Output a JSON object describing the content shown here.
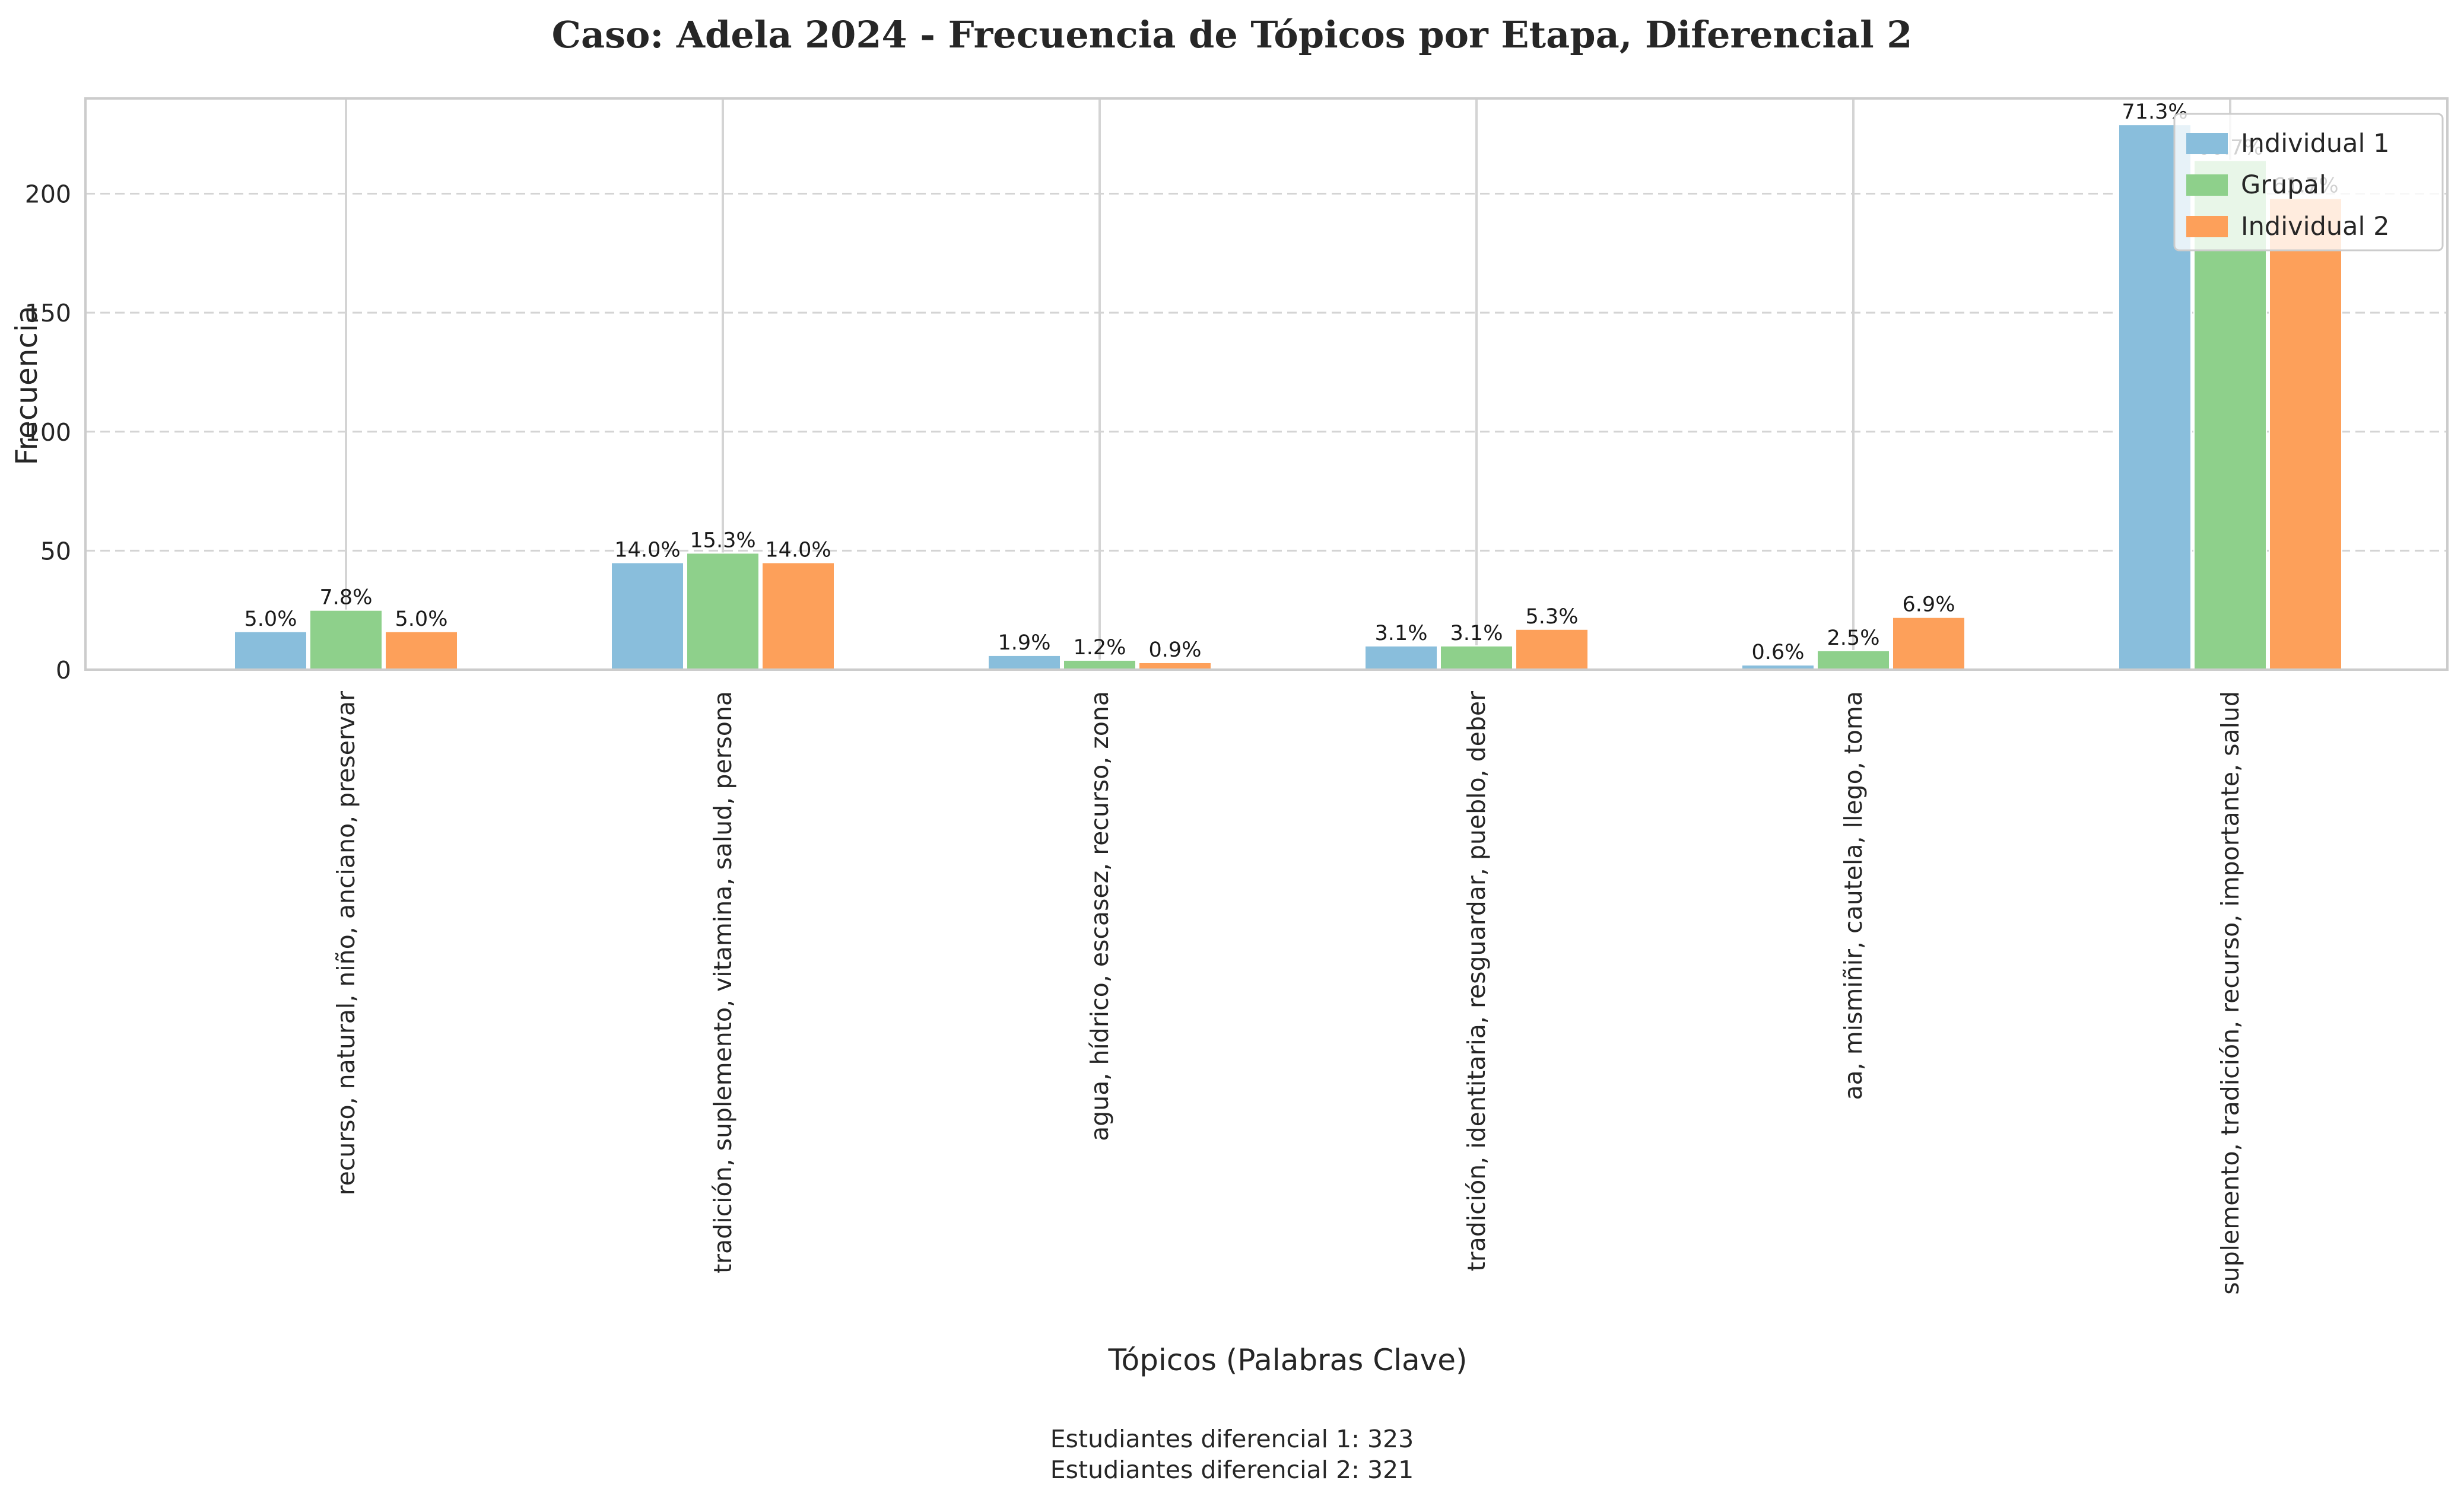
{
  "chart_data": {
    "type": "bar",
    "title": "Caso: Adela 2024 - Frecuencia de Tópicos por Etapa, Diferencial 2",
    "xlabel": "Tópicos (Palabras Clave)",
    "ylabel": "Frecuencia",
    "ylim": [
      0,
      240
    ],
    "yticks": [
      0,
      50,
      100,
      150,
      200
    ],
    "grid": "y-dashed, x-solid at categories",
    "legend_position": "top-right",
    "categories": [
      "recurso, natural, niño, anciano, preservar",
      "tradición, suplemento, vitamina, salud, persona",
      "agua, hídrico, escasez, recurso, zona",
      "tradición, identitaria, resguardar, pueblo, deber",
      "aa, mismiñir, cautela, llego, toma",
      "suplemento, tradición, recurso, importante, salud"
    ],
    "series": [
      {
        "name": "Individual 1",
        "color": "#89bedc",
        "values": [
          16,
          45,
          6,
          10,
          2,
          229
        ],
        "labels": [
          "5.0%",
          "14.0%",
          "1.9%",
          "3.1%",
          "0.6%",
          "71.3%"
        ]
      },
      {
        "name": "Grupal",
        "color": "#8ed08b",
        "values": [
          25,
          49,
          4,
          10,
          8,
          214
        ],
        "labels": [
          "7.8%",
          "15.3%",
          "1.2%",
          "3.1%",
          "2.5%",
          "66.7%"
        ]
      },
      {
        "name": "Individual 2",
        "color": "#fda05a",
        "values": [
          16,
          45,
          3,
          17,
          22,
          198
        ],
        "labels": [
          "5.0%",
          "14.0%",
          "0.9%",
          "5.3%",
          "6.9%",
          "61.7%"
        ]
      }
    ],
    "footnote": [
      "Estudiantes diferencial 1: 323",
      "Estudiantes diferencial 2: 321"
    ]
  }
}
